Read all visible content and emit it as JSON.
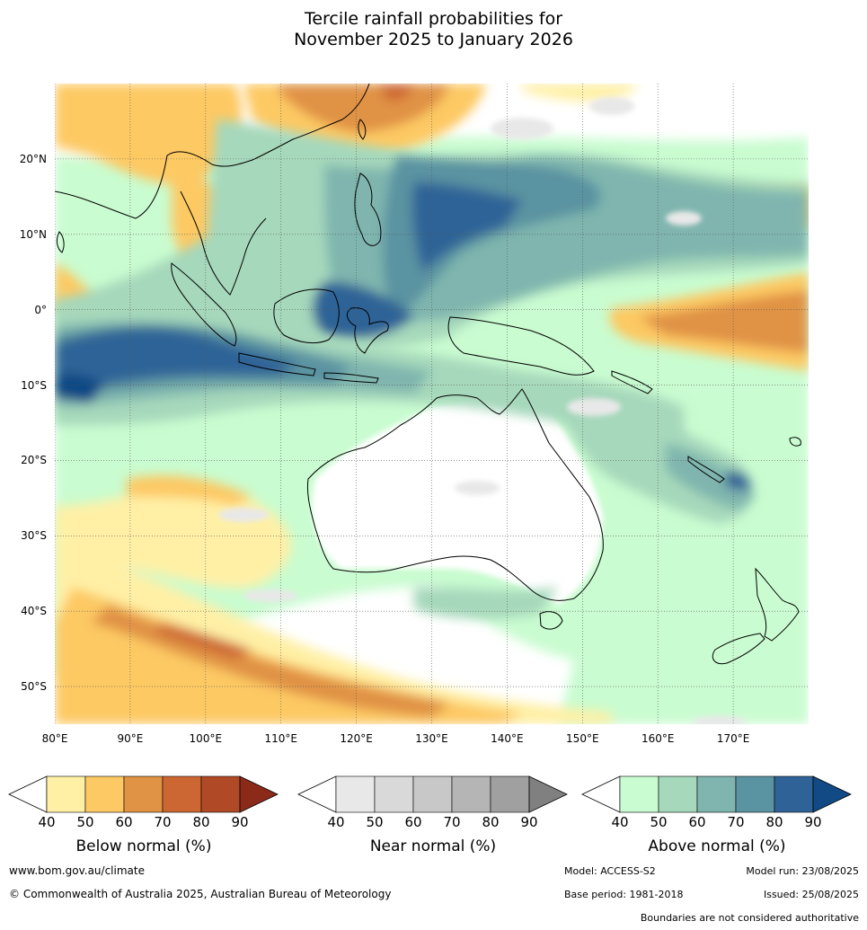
{
  "title": {
    "line1": "Tercile rainfall probabilities for",
    "line2": "November 2025 to January 2026"
  },
  "map": {
    "lon_min": 80,
    "lon_max": 180,
    "lat_min": -55,
    "lat_max": 30,
    "lat_labels": [
      "20°N",
      "10°N",
      "0°",
      "10°S",
      "20°S",
      "30°S",
      "40°S",
      "50°S"
    ],
    "lat_values": [
      20,
      10,
      0,
      -10,
      -20,
      -30,
      -40,
      -50
    ],
    "lon_labels": [
      "80°E",
      "90°E",
      "100°E",
      "110°E",
      "120°E",
      "130°E",
      "140°E",
      "150°E",
      "160°E",
      "170°E"
    ],
    "lon_values": [
      80,
      90,
      100,
      110,
      120,
      130,
      140,
      150,
      160,
      170
    ],
    "grid_lines": true
  },
  "colorbars": [
    {
      "name": "below",
      "title": "Below normal (%)",
      "ticks": [
        "40",
        "50",
        "60",
        "70",
        "80",
        "90"
      ],
      "colors": [
        "#fff0a6",
        "#fdc964",
        "#e09245",
        "#cc6633",
        "#b04a26",
        "#8c2a1a"
      ]
    },
    {
      "name": "near",
      "title": "Near normal (%)",
      "ticks": [
        "40",
        "50",
        "60",
        "70",
        "80",
        "90"
      ],
      "colors": [
        "#e8e8e8",
        "#d9d9d9",
        "#c8c8c8",
        "#b5b5b5",
        "#a0a0a0",
        "#808080"
      ]
    },
    {
      "name": "above",
      "title": "Above normal (%)",
      "ticks": [
        "40",
        "50",
        "60",
        "70",
        "80",
        "90"
      ],
      "colors": [
        "#c9fcd0",
        "#a6d8bb",
        "#7fb5ae",
        "#5a93a1",
        "#2f6397",
        "#114a85"
      ]
    }
  ],
  "footer": {
    "website": "www.bom.gov.au/climate",
    "copyright": "© Commonwealth of Australia 2025, Australian Bureau of Meteorology",
    "model": "Model: ACCESS-S2",
    "model_run": "Model run: 23/08/2025",
    "base_period": "Base period: 1981-2018",
    "issued": "Issued: 25/08/2025",
    "disclaimer": "Boundaries are not considered authoritative"
  }
}
